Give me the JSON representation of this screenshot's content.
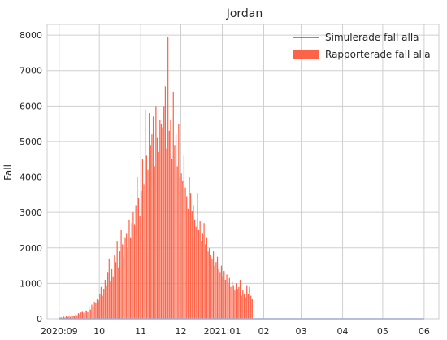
{
  "chart_data": {
    "type": "bar",
    "title": "Jordan",
    "xlabel": "",
    "ylabel": "Fall",
    "ylim": [
      0,
      8300
    ],
    "yticks": [
      0,
      1000,
      2000,
      3000,
      4000,
      5000,
      6000,
      7000,
      8000
    ],
    "x_range": [
      "2020-08-23",
      "2021-06-12"
    ],
    "xticks": [
      {
        "date": "2020-09-01",
        "label": "2020:09"
      },
      {
        "date": "2020-10-01",
        "label": "10"
      },
      {
        "date": "2020-11-01",
        "label": "11"
      },
      {
        "date": "2020-12-01",
        "label": "12"
      },
      {
        "date": "2021-01-01",
        "label": "2021:01"
      },
      {
        "date": "2021-02-01",
        "label": "02"
      },
      {
        "date": "2021-03-01",
        "label": "03"
      },
      {
        "date": "2021-04-01",
        "label": "04"
      },
      {
        "date": "2021-05-01",
        "label": "05"
      },
      {
        "date": "2021-06-01",
        "label": "06"
      }
    ],
    "grid": true,
    "legend_position": "top-right",
    "series": [
      {
        "name": "Simulerade fall alla",
        "type": "line",
        "color": "#4169e1",
        "x": [
          "2020-09-01",
          "2021-06-01"
        ],
        "y": [
          0,
          0
        ]
      },
      {
        "name": "Rapporterade fall alla",
        "type": "bar",
        "color": "#ff6347",
        "start_date": "2020-09-01",
        "values": [
          30,
          45,
          25,
          60,
          40,
          70,
          50,
          65,
          55,
          90,
          80,
          75,
          120,
          100,
          160,
          130,
          180,
          220,
          170,
          250,
          230,
          210,
          330,
          260,
          400,
          350,
          480,
          450,
          560,
          520,
          700,
          900,
          650,
          850,
          1100,
          950,
          1300,
          1700,
          1050,
          1400,
          1200,
          1800,
          1600,
          2200,
          1450,
          1900,
          2500,
          2100,
          1750,
          2300,
          2400,
          2000,
          2800,
          2300,
          2700,
          3000,
          2650,
          3200,
          4000,
          3400,
          2900,
          3600,
          4500,
          3800,
          5900,
          4600,
          4200,
          5800,
          4900,
          5200,
          5700,
          4300,
          6000,
          5100,
          4700,
          5600,
          5500,
          5400,
          6000,
          6550,
          4800,
          7950,
          5300,
          5600,
          4500,
          6400,
          4900,
          5200,
          4300,
          5500,
          4000,
          4100,
          3900,
          4600,
          3700,
          3450,
          3100,
          4000,
          3550,
          3050,
          3200,
          2800,
          2600,
          3550,
          2500,
          2750,
          2200,
          2400,
          2700,
          2100,
          2300,
          1900,
          2000,
          1800,
          1700,
          1900,
          1500,
          1600,
          1750,
          1400,
          1300,
          1500,
          1200,
          1350,
          1100,
          1250,
          1000,
          1150,
          900,
          1050,
          950,
          800,
          1000,
          850,
          900,
          1100,
          650,
          800,
          700,
          600,
          950,
          700,
          900,
          650,
          550
        ]
      }
    ]
  }
}
